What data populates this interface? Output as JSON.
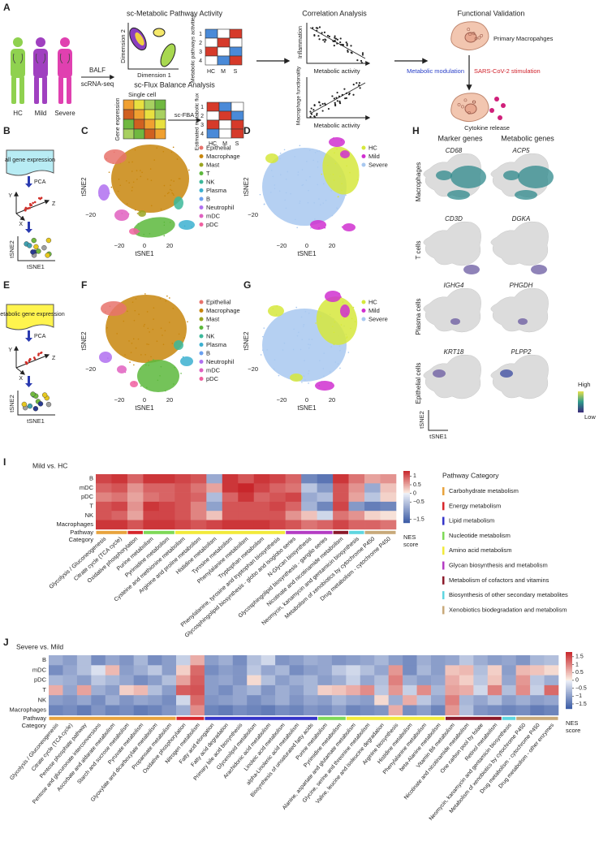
{
  "panel_labels": [
    "A",
    "B",
    "C",
    "D",
    "E",
    "F",
    "G",
    "H",
    "I",
    "J"
  ],
  "a": {
    "groups": [
      "HC",
      "Mild",
      "Severe"
    ],
    "balf": "BALF",
    "scrnaseq": "scRNA-seq",
    "pathway_title": "sc-Metabolic Pathway Activity",
    "dim2": "Dimension 2",
    "dim1": "Dimension 1",
    "pathway_ylabel": "Metabolic pathways activities",
    "rows": [
      "1",
      "2",
      "3",
      "4"
    ],
    "cols": [
      "HC",
      "M",
      "S"
    ],
    "fba_title": "sc-Flux Balance Analysis",
    "single_cell": "Single cell",
    "gene_expression": "Gene expression",
    "scfba": "sc-FBA",
    "flux_ylabel": "Estimated metabolic flux",
    "corr_title": "Correlation Analysis",
    "inflammation": "Inflammation",
    "metabolic_activity_1": "Metabolic activity",
    "macrophage_functionality": "Macrophage functionality",
    "metabolic_activity_2": "Metabolic activity",
    "validation_title": "Functional Validation",
    "primary_macrophages": "Primary Macropahges",
    "metabolic_modulation": "Metabolic modulation",
    "stimulation": "SARS-CoV-2 stimulation",
    "cytokine_release": "Cytokine release"
  },
  "b": {
    "box": "all gene expression",
    "pca": "PCA",
    "axes": [
      "Y",
      "Z",
      "X"
    ],
    "tsne2": "tSNE2",
    "tsne1": "tSNE1"
  },
  "e": {
    "box": "metabolic gene expression",
    "pca": "PCA",
    "axes": [
      "Y",
      "Z",
      "X"
    ],
    "tsne2": "tSNE2",
    "tsne1": "tSNE1"
  },
  "c": {
    "legend": [
      {
        "name": "Epithelial",
        "color": "#e8736c"
      },
      {
        "name": "Macrophage",
        "color": "#c8860d"
      },
      {
        "name": "Mast",
        "color": "#9aa420"
      },
      {
        "name": "T",
        "color": "#5cb83c"
      },
      {
        "name": "NK",
        "color": "#3cb89a"
      },
      {
        "name": "Plasma",
        "color": "#3cb0d0"
      },
      {
        "name": "B",
        "color": "#6aa0f0"
      },
      {
        "name": "Neutrophil",
        "color": "#b070f0"
      },
      {
        "name": "mDC",
        "color": "#e060c0"
      },
      {
        "name": "pDC",
        "color": "#f060a0"
      }
    ],
    "ylabel": "tSNE2",
    "xlabel": "tSNE1",
    "xticks": [
      "−20",
      "0",
      "20"
    ],
    "yticks": [
      "−20"
    ]
  },
  "d": {
    "legend": [
      {
        "name": "HC",
        "color": "#d6e83c"
      },
      {
        "name": "Mild",
        "color": "#d030d0"
      },
      {
        "name": "Severe",
        "color": "#a8c8f0"
      }
    ],
    "ylabel": "tSNE2",
    "xlabel": "tSNE1",
    "xticks": [
      "−20",
      "0",
      "20"
    ],
    "yticks": [
      "−20"
    ]
  },
  "f": {
    "legend": [
      {
        "name": "Epithelial",
        "color": "#e8736c"
      },
      {
        "name": "Macrophage",
        "color": "#c8860d"
      },
      {
        "name": "Mast",
        "color": "#9aa420"
      },
      {
        "name": "T",
        "color": "#5cb83c"
      },
      {
        "name": "NK",
        "color": "#3cb89a"
      },
      {
        "name": "Plasma",
        "color": "#3cb0d0"
      },
      {
        "name": "B",
        "color": "#6aa0f0"
      },
      {
        "name": "Neutrophil",
        "color": "#b070f0"
      },
      {
        "name": "mDC",
        "color": "#e060c0"
      },
      {
        "name": "pDC",
        "color": "#f060a0"
      }
    ],
    "ylabel": "tSNE2",
    "xlabel": "tSNE1",
    "xticks": [
      "−20",
      "0",
      "20"
    ],
    "yticks": [
      "−20"
    ]
  },
  "g": {
    "legend": [
      {
        "name": "HC",
        "color": "#d6e83c"
      },
      {
        "name": "Mild",
        "color": "#d030d0"
      },
      {
        "name": "Severe",
        "color": "#a8c8f0"
      }
    ],
    "ylabel": "tSNE2",
    "xlabel": "tSNE1",
    "xticks": [
      "−20",
      "0",
      "20"
    ],
    "yticks": [
      "−20"
    ]
  },
  "h": {
    "headers": [
      "Marker genes",
      "Metabolic genes"
    ],
    "rows": [
      {
        "label": "Macrophages",
        "genes": [
          "CD68",
          "ACP5"
        ]
      },
      {
        "label": "T cells",
        "genes": [
          "CD3D",
          "DGKA"
        ]
      },
      {
        "label": "Plasma cells",
        "genes": [
          "IGHG4",
          "PHGDH"
        ]
      },
      {
        "label": "Epithelial cells",
        "genes": [
          "KRT18",
          "PLPP2"
        ]
      }
    ],
    "high": "High",
    "low": "Low",
    "tsne2": "tSNE2",
    "tsne1": "tSNE1"
  },
  "i": {
    "title": "Mild vs. HC",
    "rows": [
      "B",
      "mDC",
      "pDC",
      "T",
      "NK",
      "Macrophages"
    ],
    "category_label": [
      "Pathway",
      "Category"
    ],
    "groups": [
      {
        "category": "Carbohydrate metabolism",
        "columns": [
          "Glycolysis / Gluconeogenesis",
          "Citrate cycle (TCA cycle)"
        ]
      },
      {
        "category": "Energy metabolism",
        "columns": [
          "Oxidative phosphorylation"
        ]
      },
      {
        "category": "Nucleotide metabolism",
        "columns": [
          "Purine metabolism",
          "Pyrimidine metabolism"
        ]
      },
      {
        "category": "Amino acid metabolism",
        "columns": [
          "Cysteine and methionine metabolism",
          "Arginine and proline metabolism",
          "Histidine metabolism",
          "Tyrosine metabolism",
          "Phenylalanine metabolism",
          "Tryptophan metabolism",
          "Phenylalanine, tyrosine and tryptophan biosynthesis"
        ]
      },
      {
        "category": "Glycan biosynthesis and metabolism",
        "columns": [
          "Glycosphingolipid biosynthesis - globo and isoglobo series",
          "N-Glycan biosynthesis",
          "Glycosphingolipid biosynthesis - ganglio series"
        ]
      },
      {
        "category": "Metabolism of cofactors and vitamins",
        "columns": [
          "Nicotinate and nicotinamide metabolism"
        ]
      },
      {
        "category": "Biosynthesis of other secondary metabolites",
        "columns": [
          "Neomycin, kanamycin and gentamicin biosynthesis"
        ]
      },
      {
        "category": "Xenobiotics biodegradation and metabolism",
        "columns": [
          "Metabolism of xenobiotics by cytochrome P450",
          "Drug metabolism - cytochrome P450"
        ]
      }
    ],
    "values": [
      [
        1.1,
        1.2,
        0.9,
        1.2,
        1.2,
        1.1,
        1.0,
        -0.8,
        1.2,
        1.0,
        1.2,
        1.1,
        0.9,
        -1.2,
        -1.4,
        1.2,
        0.8,
        0.5,
        0.6
      ],
      [
        0.9,
        1.0,
        0.6,
        0.9,
        0.9,
        1.0,
        0.8,
        0.5,
        1.2,
        1.3,
        1.1,
        0.9,
        0.8,
        -0.5,
        -1.0,
        1.0,
        0.6,
        -0.8,
        0.3
      ],
      [
        0.7,
        0.8,
        0.5,
        0.8,
        0.9,
        1.0,
        0.9,
        -0.6,
        0.9,
        1.2,
        0.9,
        1.0,
        1.1,
        -0.8,
        -0.6,
        1.0,
        0.5,
        -0.5,
        0.2
      ],
      [
        1.0,
        1.1,
        0.6,
        1.2,
        1.1,
        1.0,
        0.7,
        -0.9,
        1.0,
        1.0,
        1.0,
        1.1,
        0.9,
        -0.7,
        -1.2,
        1.1,
        -1.0,
        -1.3,
        -1.2
      ],
      [
        1.0,
        0.9,
        0.5,
        1.1,
        1.1,
        1.0,
        0.7,
        0.3,
        1.0,
        1.0,
        1.0,
        1.0,
        0.6,
        0.3,
        -0.3,
        0.8,
        0.6,
        0.2,
        0.1
      ],
      [
        1.2,
        1.2,
        1.0,
        1.2,
        1.2,
        1.1,
        1.0,
        1.1,
        1.2,
        1.2,
        1.2,
        1.1,
        1.0,
        0.8,
        0.9,
        1.1,
        0.9,
        0.9,
        0.8
      ]
    ],
    "colorbar": {
      "label": [
        "NES",
        "score"
      ],
      "lim": [
        -1.7,
        1.3
      ],
      "ticks": [
        1,
        0.5,
        0,
        {
          "value": -0.5,
          "label": "−0.5"
        },
        {
          "value": -1.5,
          "label": "−1.5"
        }
      ]
    },
    "pathway_legend": {
      "title": "Pathway Category",
      "categories": [
        {
          "name": "Carbohydrate metabolism",
          "color": "#e8a33d"
        },
        {
          "name": "Energy metabolism",
          "color": "#d7262b"
        },
        {
          "name": "Lipid metabolism",
          "color": "#3535c9"
        },
        {
          "name": "Nucleotide metabolism",
          "color": "#7ed957"
        },
        {
          "name": "Amino acid metabolism",
          "color": "#f2ea3a"
        },
        {
          "name": "Glycan biosynthesis and metabolism",
          "color": "#b43cc4"
        },
        {
          "name": "Metabolism of cofactors and vitamins",
          "color": "#8b1a2a"
        },
        {
          "name": "Biosynthesis of other secondary metabolites",
          "color": "#5fd6e0"
        },
        {
          "name": "Xenobiotics biodegradation and metabolism",
          "color": "#c8a97a"
        }
      ]
    }
  },
  "j": {
    "title": "Severe vs. Mild",
    "rows": [
      "B",
      "mDC",
      "pDC",
      "T",
      "NK",
      "Macrophages"
    ],
    "category_label": [
      "Pathway",
      "Category"
    ],
    "groups": [
      {
        "category": "Carbohydrate metabolism",
        "columns": [
          "Glycolysis / Gluconeogenesis",
          "Citrate cycle (TCA cycle)",
          "Pentose phosphate pathway",
          "Pentose and glucuronate interconversions",
          "Ascorbate and aldarate metabolism",
          "Starch and sucrose metabolism",
          "Pyruvate metabolism",
          "Glyoxylate and dicarboxylate metabolism",
          "Propanoate metabolism"
        ]
      },
      {
        "category": "Energy metabolism",
        "columns": [
          "Oxidative phosphorylation",
          "Nitrogen metabolism"
        ]
      },
      {
        "category": "Lipid metabolism",
        "columns": [
          "Fatty acid elongation",
          "Fatty acid degradation",
          "Primary bile acid biosynthesis",
          "Glycerolipid metabolism",
          "Arachidonic acid metabolism",
          "Linoleic acid metabolism",
          "alpha-Linolenic acid metabolism",
          "Biosynthesis of unsaturated fatty acids"
        ]
      },
      {
        "category": "Nucleotide metabolism",
        "columns": [
          "Purine metabolism",
          "Pyrimidine metabolism"
        ]
      },
      {
        "category": "Amino acid metabolism",
        "columns": [
          "Alanine, aspartate and glutamate metabolism",
          "Glycine, serine and threonine metabolism",
          "Valine, leucine and isoleucine degradation",
          "Arginine biosynthesis",
          "Histidine metabolism",
          "Phenylalanine metabolism",
          "beta-Alanine metabolism"
        ]
      },
      {
        "category": "Metabolism of cofactors and vitamins",
        "columns": [
          "Vitamin B6 metabolism",
          "Nicotinate and nicotinamide metabolism",
          "One carbon pool by folate",
          "Retinol metabolism"
        ]
      },
      {
        "category": "Biosynthesis of other secondary metabolites",
        "columns": [
          "Neomycin, kanamycin and gentamicin biosynthesis"
        ]
      },
      {
        "category": "Xenobiotics biodegradation and metabolism",
        "columns": [
          "Metabolism of xenobiotics by cytochrome P450",
          "Drug metabolism - cytochrome P450",
          "Drug metabolism - other enzymes"
        ]
      }
    ],
    "values": [
      [
        -0.8,
        -1.0,
        -0.6,
        -1.2,
        -0.9,
        -1.1,
        -0.7,
        -1.2,
        -1.0,
        -0.4,
        0.6,
        -1.0,
        -0.8,
        -1.2,
        -0.6,
        -0.3,
        -1.1,
        -1.0,
        -0.8,
        -0.9,
        -1.1,
        -1.0,
        -0.9,
        -0.7,
        -1.0,
        -1.2,
        -0.8,
        -1.0,
        -0.9,
        -0.5,
        -0.8,
        -1.0,
        -0.9,
        -1.1,
        -0.7,
        -0.6
      ],
      [
        -1.2,
        -0.9,
        -0.6,
        -0.2,
        0.5,
        -1.0,
        -0.8,
        -0.5,
        -1.0,
        0.3,
        1.2,
        -1.2,
        -1.0,
        -1.1,
        -0.5,
        -0.9,
        -0.7,
        -1.2,
        -1.0,
        -0.9,
        -0.5,
        -0.3,
        -0.6,
        -0.9,
        0.8,
        -1.2,
        -0.7,
        -1.0,
        0.4,
        0.5,
        -0.6,
        0.3,
        -1.0,
        0.5,
        0.4,
        0.2
      ],
      [
        -0.7,
        -0.8,
        -1.0,
        -0.5,
        -0.7,
        -0.9,
        -1.2,
        -1.0,
        -0.6,
        0.7,
        1.3,
        -1.0,
        -0.9,
        -1.1,
        0.2,
        -0.6,
        -1.0,
        -0.8,
        -0.7,
        -1.0,
        -0.8,
        -0.4,
        -0.9,
        -0.6,
        1.0,
        -0.8,
        -1.0,
        -0.9,
        0.6,
        0.3,
        -0.5,
        0.4,
        -0.9,
        0.8,
        -0.5,
        -0.8
      ],
      [
        0.6,
        -0.9,
        0.7,
        -0.8,
        -1.0,
        0.3,
        0.5,
        -0.6,
        -1.0,
        1.3,
        1.4,
        -1.0,
        -1.2,
        -0.9,
        -0.7,
        -1.1,
        -0.8,
        -1.0,
        -0.7,
        0.3,
        0.4,
        0.6,
        0.9,
        -0.5,
        0.8,
        -0.4,
        0.9,
        -0.7,
        0.7,
        0.6,
        -0.3,
        1.0,
        -0.6,
        0.9,
        -0.4,
        1.2
      ],
      [
        -1.0,
        -1.1,
        -0.9,
        -1.2,
        -0.8,
        -1.1,
        -0.9,
        -1.0,
        -1.2,
        -0.3,
        1.2,
        -1.1,
        -1.0,
        -0.9,
        -1.2,
        -1.0,
        -0.8,
        -1.1,
        -0.9,
        -1.0,
        -0.7,
        -0.9,
        -1.0,
        0.2,
        -0.8,
        0.6,
        -0.5,
        -0.9,
        1.0,
        -0.7,
        -0.9,
        -0.6,
        -1.0,
        -0.8,
        -1.0,
        -0.9
      ],
      [
        -1.3,
        -1.2,
        -1.4,
        -1.1,
        -1.3,
        -1.2,
        -1.4,
        -1.3,
        -1.1,
        -0.8,
        0.9,
        -1.3,
        -1.4,
        -1.2,
        -1.3,
        -1.4,
        -1.2,
        -1.3,
        -1.1,
        -1.2,
        -1.0,
        -1.3,
        -1.2,
        -1.1,
        0.6,
        -1.2,
        -1.0,
        -1.3,
        0.8,
        -0.6,
        -1.1,
        -1.2,
        -1.3,
        -1.2,
        -1.4,
        -1.3
      ]
    ],
    "colorbar": {
      "label": [
        "NES",
        "score"
      ],
      "lim": [
        -1.8,
        1.8
      ],
      "ticks": [
        1.5,
        1,
        0.5,
        0,
        {
          "value": -0.5,
          "label": "−0.5"
        },
        {
          "value": -1,
          "label": "−1"
        },
        {
          "value": -1.5,
          "label": "−1.5"
        }
      ]
    }
  }
}
